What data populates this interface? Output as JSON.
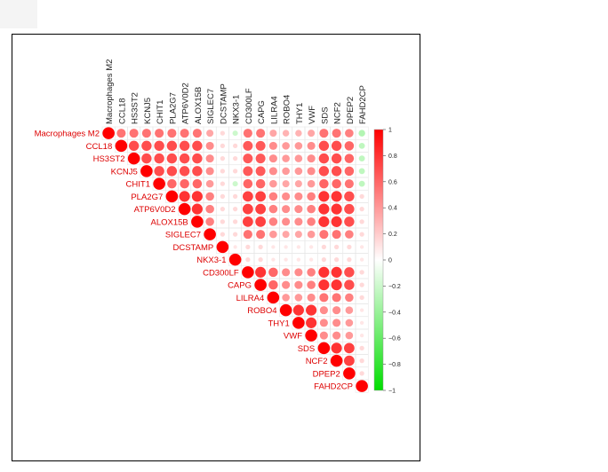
{
  "chart_data": {
    "type": "heatmap",
    "subtype": "correlation-upper-triangle",
    "variables": [
      "Macrophages M2",
      "CCL18",
      "HS3ST2",
      "KCNJ5",
      "CHIT1",
      "PLA2G7",
      "ATP6V0D2",
      "ALOX15B",
      "SIGLEC7",
      "DCSTAMP",
      "NKX3-1",
      "CD300LF",
      "CAPG",
      "LILRA4",
      "ROBO4",
      "THY1",
      "VWF",
      "SDS",
      "NCF2",
      "DPEP2",
      "FAHD2CP"
    ],
    "matrix": [
      [
        1,
        0.55,
        0.55,
        0.55,
        0.55,
        0.55,
        0.55,
        0.55,
        0.35,
        0.15,
        -0.2,
        0.55,
        0.55,
        0.35,
        0.3,
        0.3,
        0.35,
        0.55,
        0.55,
        0.5,
        -0.3
      ],
      [
        null,
        1,
        0.7,
        0.7,
        0.7,
        0.7,
        0.7,
        0.7,
        0.45,
        0.15,
        0.15,
        0.65,
        0.65,
        0.45,
        0.4,
        0.4,
        0.45,
        0.7,
        0.7,
        0.6,
        -0.25
      ],
      [
        null,
        null,
        1,
        0.7,
        0.7,
        0.7,
        0.7,
        0.7,
        0.45,
        0.15,
        0.15,
        0.65,
        0.65,
        0.45,
        0.4,
        0.4,
        0.45,
        0.7,
        0.7,
        0.6,
        -0.25
      ],
      [
        null,
        null,
        null,
        1,
        0.7,
        0.7,
        0.7,
        0.7,
        0.45,
        0.15,
        0.15,
        0.65,
        0.65,
        0.45,
        0.4,
        0.4,
        0.45,
        0.7,
        0.7,
        0.6,
        -0.25
      ],
      [
        null,
        null,
        null,
        null,
        1,
        0.6,
        0.6,
        0.6,
        0.4,
        0.15,
        -0.2,
        0.6,
        0.6,
        0.4,
        0.35,
        0.35,
        0.4,
        0.6,
        0.6,
        0.55,
        -0.25
      ],
      [
        null,
        null,
        null,
        null,
        null,
        1,
        0.8,
        0.8,
        0.5,
        0.15,
        0.15,
        0.75,
        0.75,
        0.5,
        0.45,
        0.45,
        0.5,
        0.8,
        0.8,
        0.7,
        0.15
      ],
      [
        null,
        null,
        null,
        null,
        null,
        null,
        1,
        0.8,
        0.5,
        0.15,
        0.15,
        0.75,
        0.75,
        0.5,
        0.45,
        0.45,
        0.5,
        0.8,
        0.8,
        0.7,
        0.15
      ],
      [
        null,
        null,
        null,
        null,
        null,
        null,
        null,
        1,
        0.5,
        0.15,
        0.15,
        0.75,
        0.75,
        0.5,
        0.45,
        0.45,
        0.5,
        0.8,
        0.8,
        0.7,
        0.15
      ],
      [
        null,
        null,
        null,
        null,
        null,
        null,
        null,
        null,
        1,
        0.15,
        0.15,
        0.55,
        0.55,
        0.4,
        0.35,
        0.35,
        0.4,
        0.55,
        0.55,
        0.5,
        0.15
      ],
      [
        null,
        null,
        null,
        null,
        null,
        null,
        null,
        null,
        null,
        1,
        0.1,
        0.15,
        0.15,
        0.1,
        0.1,
        0.1,
        0.1,
        0.15,
        0.15,
        0.15,
        0.1
      ],
      [
        null,
        null,
        null,
        null,
        null,
        null,
        null,
        null,
        null,
        null,
        1,
        0.15,
        0.15,
        0.1,
        0.1,
        0.1,
        0.1,
        0.15,
        0.15,
        0.15,
        0.1
      ],
      [
        null,
        null,
        null,
        null,
        null,
        null,
        null,
        null,
        null,
        null,
        null,
        1,
        0.8,
        0.6,
        0.45,
        0.45,
        0.5,
        0.8,
        0.8,
        0.7,
        0.15
      ],
      [
        null,
        null,
        null,
        null,
        null,
        null,
        null,
        null,
        null,
        null,
        null,
        null,
        1,
        0.6,
        0.45,
        0.45,
        0.5,
        0.8,
        0.8,
        0.7,
        0.15
      ],
      [
        null,
        null,
        null,
        null,
        null,
        null,
        null,
        null,
        null,
        null,
        null,
        null,
        null,
        1,
        0.4,
        0.4,
        0.45,
        0.55,
        0.55,
        0.5,
        0.15
      ],
      [
        null,
        null,
        null,
        null,
        null,
        null,
        null,
        null,
        null,
        null,
        null,
        null,
        null,
        null,
        1,
        0.8,
        0.8,
        0.45,
        0.45,
        0.4,
        0.1
      ],
      [
        null,
        null,
        null,
        null,
        null,
        null,
        null,
        null,
        null,
        null,
        null,
        null,
        null,
        null,
        null,
        1,
        0.8,
        0.45,
        0.45,
        0.4,
        0.1
      ],
      [
        null,
        null,
        null,
        null,
        null,
        null,
        null,
        null,
        null,
        null,
        null,
        null,
        null,
        null,
        null,
        null,
        1,
        0.45,
        0.45,
        0.4,
        0.1
      ],
      [
        null,
        null,
        null,
        null,
        null,
        null,
        null,
        null,
        null,
        null,
        null,
        null,
        null,
        null,
        null,
        null,
        null,
        1,
        0.8,
        0.75,
        0.15
      ],
      [
        null,
        null,
        null,
        null,
        null,
        null,
        null,
        null,
        null,
        null,
        null,
        null,
        null,
        null,
        null,
        null,
        null,
        null,
        1,
        0.75,
        0.15
      ],
      [
        null,
        null,
        null,
        null,
        null,
        null,
        null,
        null,
        null,
        null,
        null,
        null,
        null,
        null,
        null,
        null,
        null,
        null,
        null,
        1,
        0.15
      ],
      [
        null,
        null,
        null,
        null,
        null,
        null,
        null,
        null,
        null,
        null,
        null,
        null,
        null,
        null,
        null,
        null,
        null,
        null,
        null,
        null,
        1
      ]
    ],
    "colorbar": {
      "min": -1,
      "max": 1,
      "ticks": [
        "1",
        "0.8",
        "0.6",
        "0.4",
        "0.2",
        "0",
        "−0.2",
        "−0.4",
        "−0.6",
        "−0.8",
        "−1"
      ],
      "tick_values": [
        1,
        0.8,
        0.6,
        0.4,
        0.2,
        0,
        -0.2,
        -0.4,
        -0.6,
        -0.8,
        -1
      ],
      "positive_color": "#ff0000",
      "negative_color": "#00dd00",
      "neutral_color": "#ffffff"
    },
    "label_color": "#dd0000",
    "title": "",
    "xlabel": "",
    "ylabel": ""
  }
}
